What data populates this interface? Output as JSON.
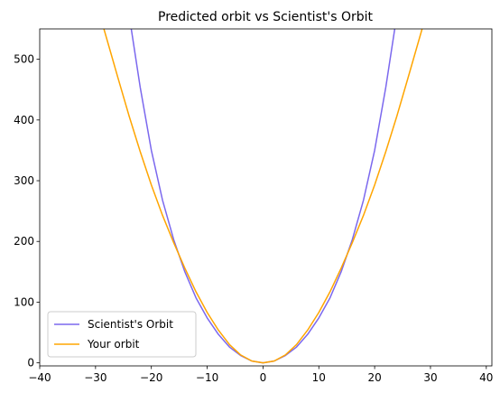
{
  "chart_data": {
    "type": "line",
    "title": "Predicted orbit vs Scientist's Orbit",
    "xlabel": "",
    "ylabel": "",
    "xlim": [
      -40,
      41
    ],
    "ylim": [
      -5,
      550
    ],
    "xticks": [
      -40,
      -30,
      -20,
      -10,
      0,
      10,
      20,
      30,
      40
    ],
    "yticks": [
      0,
      100,
      200,
      300,
      400,
      500
    ],
    "grid": false,
    "legend_position": "lower-left",
    "series": [
      {
        "name": "Scientist's Orbit",
        "color": "#7b68ee",
        "x": [
          -23.6,
          -22,
          -20,
          -18,
          -16,
          -14,
          -12,
          -10,
          -8,
          -6,
          -4,
          -2,
          0,
          2,
          4,
          6,
          8,
          10,
          12,
          14,
          16,
          18,
          20,
          22,
          23.6
        ],
        "y": [
          550,
          454,
          350,
          268,
          203,
          150,
          107,
          74,
          47,
          26,
          12,
          3,
          0,
          3,
          12,
          26,
          47,
          74,
          107,
          150,
          203,
          268,
          350,
          454,
          550
        ]
      },
      {
        "name": "Your orbit",
        "color": "#ffa500",
        "x": [
          -28.5,
          -26,
          -24,
          -22,
          -20,
          -18,
          -16,
          -14,
          -12,
          -10,
          -8,
          -6,
          -4,
          -2,
          0,
          2,
          4,
          6,
          8,
          10,
          12,
          14,
          16,
          18,
          20,
          22,
          24,
          26,
          28.5
        ],
        "y": [
          550,
          470,
          407,
          348,
          293,
          243,
          198,
          156,
          117,
          83,
          54,
          30,
          13,
          3,
          0,
          3,
          13,
          30,
          54,
          83,
          117,
          156,
          198,
          243,
          293,
          348,
          407,
          470,
          550
        ]
      }
    ]
  }
}
